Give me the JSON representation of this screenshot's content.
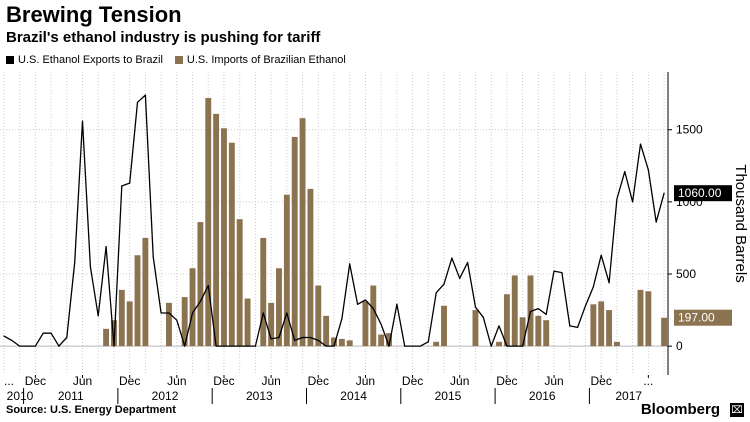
{
  "title": "Brewing Tension",
  "subtitle": "Brazil's ethanol industry is pushing for tariff",
  "source": "Source: U.S. Energy Department",
  "brand": "Bloomberg",
  "colors": {
    "line": "#000000",
    "bars": "#8c7350",
    "grid": "#cccccc",
    "end_label_bg": "#000000"
  },
  "chart_data": {
    "type": "bar",
    "title": "Brewing Tension",
    "subtitle": "Brazil's ethanol industry is pushing for tariff",
    "ylabel": "Thousand Barrels",
    "ylim": [
      -200,
      1900
    ],
    "yticks": [
      0,
      500,
      1000,
      1500
    ],
    "x_month_labels": [
      "...",
      "Dec",
      "Jun",
      "Dec",
      "Jun",
      "Dec",
      "Jun",
      "Dec",
      "Jun",
      "Dec",
      "Jun",
      "Dec",
      "Jun",
      "Dec",
      "..."
    ],
    "x_year_labels": [
      "2010",
      "2011",
      "2012",
      "2013",
      "2014",
      "2015",
      "2016",
      "2017"
    ],
    "end_labels": {
      "line": "1060.00",
      "bars": "197.00"
    },
    "legend_placement": "top-left",
    "series": [
      {
        "name": "U.S. Ethanol Exports to Brazil",
        "type": "line",
        "values": [
          70,
          40,
          0,
          0,
          0,
          90,
          90,
          0,
          60,
          580,
          1560,
          550,
          210,
          690,
          0,
          1110,
          1130,
          1690,
          1740,
          620,
          230,
          230,
          180,
          0,
          230,
          310,
          420,
          0,
          0,
          0,
          0,
          0,
          0,
          230,
          50,
          60,
          230,
          40,
          60,
          60,
          40,
          0,
          0,
          190,
          570,
          290,
          320,
          260,
          150,
          0,
          290,
          0,
          0,
          0,
          30,
          370,
          430,
          610,
          470,
          580,
          270,
          200,
          0,
          140,
          0,
          0,
          0,
          240,
          260,
          220,
          520,
          510,
          140,
          130,
          280,
          410,
          630,
          440,
          1020,
          1210,
          1000,
          1400,
          1220,
          860,
          1060
        ]
      },
      {
        "name": "U.S. Imports of Brazilian Ethanol",
        "type": "bar",
        "values": [
          0,
          0,
          0,
          0,
          0,
          0,
          0,
          0,
          0,
          0,
          0,
          0,
          0,
          120,
          180,
          390,
          310,
          630,
          750,
          0,
          0,
          300,
          0,
          340,
          540,
          860,
          1720,
          1610,
          1510,
          1410,
          880,
          330,
          0,
          750,
          300,
          540,
          1050,
          1450,
          1580,
          1090,
          420,
          210,
          60,
          50,
          40,
          0,
          310,
          420,
          80,
          90,
          0,
          0,
          0,
          0,
          0,
          30,
          280,
          0,
          0,
          0,
          250,
          0,
          0,
          30,
          360,
          490,
          200,
          490,
          210,
          180,
          0,
          0,
          0,
          0,
          0,
          290,
          310,
          250,
          30,
          0,
          0,
          390,
          380,
          0,
          197
        ]
      }
    ]
  }
}
